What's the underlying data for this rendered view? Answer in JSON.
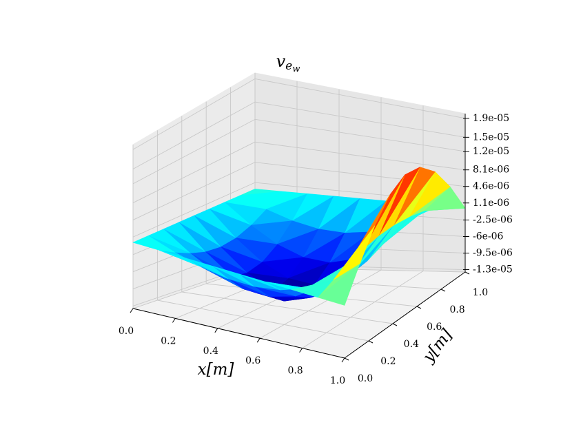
{
  "chart_data": {
    "type": "surface",
    "title": "v",
    "title_sub": "e",
    "title_subsub": "w",
    "xlabel": "x[m]",
    "ylabel": "y[m]",
    "colormap": "jet",
    "grid": true,
    "x": [
      0,
      0.125,
      0.25,
      0.375,
      0.5,
      0.625,
      0.75,
      0.875,
      1
    ],
    "y": [
      0,
      0.125,
      0.25,
      0.375,
      0.5,
      0.625,
      0.75,
      0.875,
      1
    ],
    "z": [
      [
        0,
        0,
        0,
        0,
        0,
        0,
        0,
        0,
        0
      ],
      [
        0,
        -1.9e-06,
        -3.52e-06,
        -4.58e-06,
        -4.86e-06,
        -4.16e-06,
        -2.22e-06,
        1.36e-06,
        7.27e-06
      ],
      [
        0,
        -3.51e-06,
        -6.5e-06,
        -8.46e-06,
        -8.98e-06,
        -7.69e-06,
        -4.11e-06,
        2.51e-06,
        1.343e-05
      ],
      [
        0,
        -4.59e-06,
        -8.49e-06,
        -1.105e-05,
        -1.173e-05,
        -1.005e-05,
        -5.37e-06,
        3.28e-06,
        1.755e-05
      ],
      [
        0,
        -4.97e-06,
        -9.19e-06,
        -1.196e-05,
        -1.27e-05,
        -1.088e-05,
        -5.81e-06,
        3.55e-06,
        1.9e-05
      ],
      [
        0,
        -4.59e-06,
        -8.49e-06,
        -1.105e-05,
        -1.173e-05,
        -1.005e-05,
        -5.37e-06,
        3.28e-06,
        1.755e-05
      ],
      [
        0,
        -3.51e-06,
        -6.5e-06,
        -8.46e-06,
        -8.98e-06,
        -7.69e-06,
        -4.11e-06,
        2.51e-06,
        1.343e-05
      ],
      [
        0,
        -1.9e-06,
        -3.52e-06,
        -4.58e-06,
        -4.86e-06,
        -4.16e-06,
        -2.22e-06,
        1.36e-06,
        7.27e-06
      ],
      [
        0,
        0,
        0,
        0,
        0,
        0,
        0,
        0,
        0
      ]
    ],
    "xlim": [
      0,
      1
    ],
    "ylim": [
      0,
      1
    ],
    "zlim": [
      -1.35e-05,
      2e-05
    ],
    "xticks": [
      {
        "value": 0,
        "label": "0.0"
      },
      0.2,
      0.4,
      0.6,
      0.8,
      {
        "value": 1,
        "label": "1.0"
      }
    ],
    "yticks": [
      {
        "value": 0,
        "label": "0.0"
      },
      0.2,
      0.4,
      0.6,
      0.8,
      {
        "value": 1,
        "label": "1.0"
      }
    ],
    "zticks": [
      {
        "value": -1.3e-05,
        "label": "-1.3e-05"
      },
      {
        "value": -9.5e-06,
        "label": "-9.5e-06"
      },
      {
        "value": -6e-06,
        "label": "-6e-06"
      },
      {
        "value": -2.5e-06,
        "label": "-2.5e-06"
      },
      {
        "value": 1.1e-06,
        "label": "1.1e-06"
      },
      {
        "value": 4.6e-06,
        "label": "4.6e-06"
      },
      {
        "value": 8.1e-06,
        "label": "8.1e-06"
      },
      {
        "value": 1.2e-05,
        "label": "1.2e-05"
      },
      {
        "value": 1.5e-05,
        "label": "1.5e-05"
      },
      {
        "value": 1.9e-05,
        "label": "1.9e-05"
      }
    ]
  }
}
